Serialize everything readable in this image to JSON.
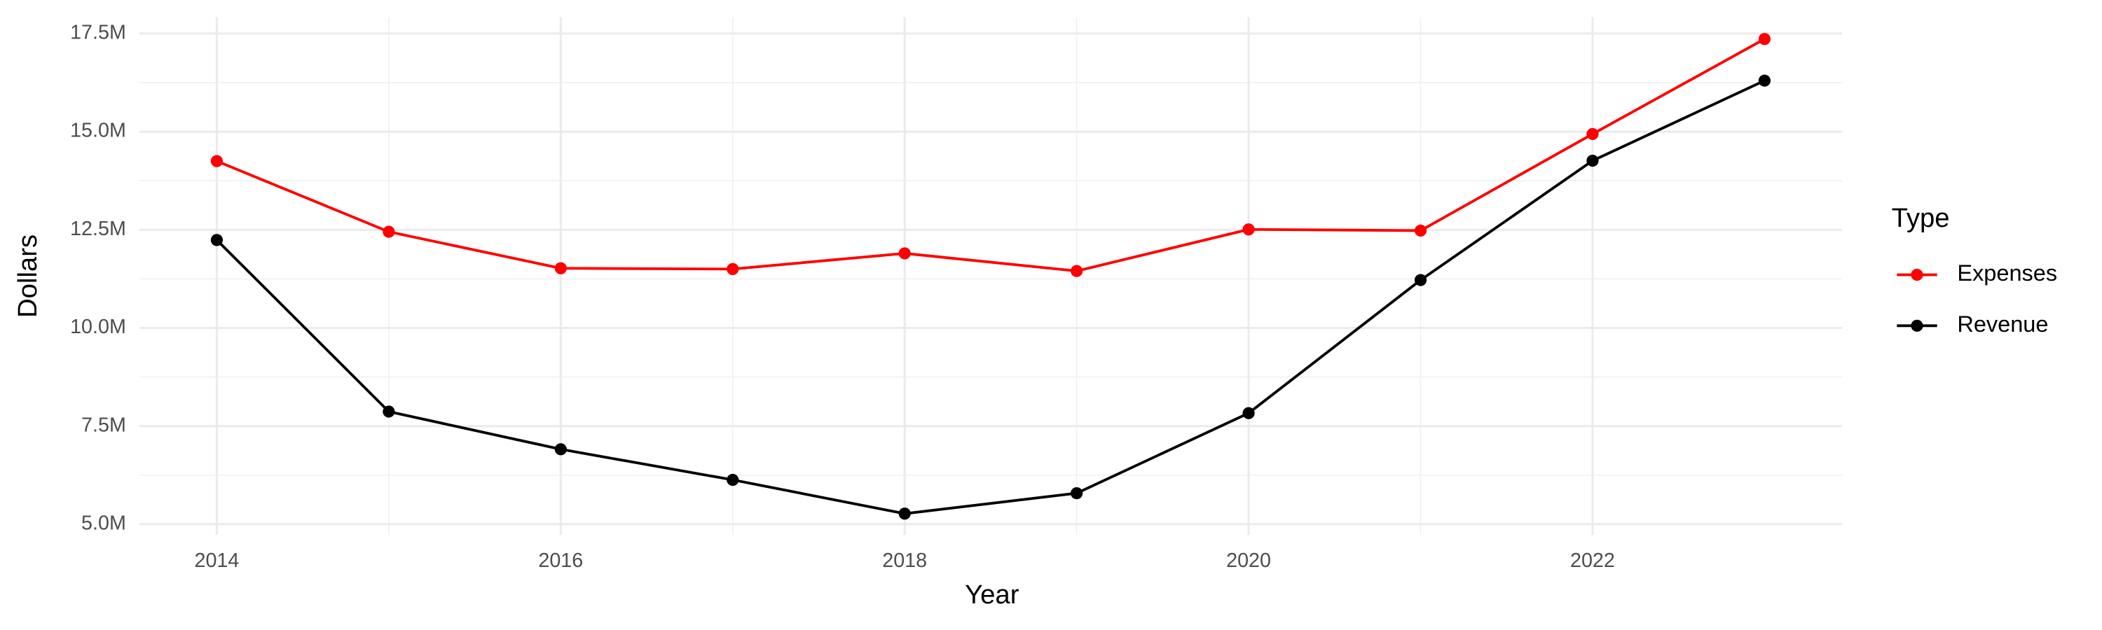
{
  "chart_data": {
    "type": "line",
    "x_label": "Year",
    "y_label": "Dollars",
    "x": [
      2014,
      2015,
      2016,
      2017,
      2018,
      2019,
      2020,
      2021,
      2022,
      2023
    ],
    "series": [
      {
        "name": "Expenses",
        "color": "#ff0000",
        "values": [
          14250000,
          12450000,
          11520000,
          11500000,
          11900000,
          11450000,
          12510000,
          12480000,
          14940000,
          17360000
        ]
      },
      {
        "name": "Revenue",
        "color": "#000000",
        "values": [
          12240000,
          7870000,
          6910000,
          6130000,
          5270000,
          5790000,
          7830000,
          11220000,
          14260000,
          16300000
        ]
      }
    ],
    "xlim": [
      2013.55,
      2023.45
    ],
    "xticks": [
      2014,
      2016,
      2018,
      2020,
      2022
    ],
    "ylim": [
      4730000,
      17910000
    ],
    "yticks": [
      {
        "value": 5000000,
        "label": "5.0M"
      },
      {
        "value": 7500000,
        "label": "7.5M"
      },
      {
        "value": 10000000,
        "label": "10.0M"
      },
      {
        "value": 12500000,
        "label": "12.5M"
      },
      {
        "value": 15000000,
        "label": "15.0M"
      },
      {
        "value": 17500000,
        "label": "17.5M"
      }
    ],
    "grid": true,
    "legend_title": "Type",
    "legend_position": "right"
  }
}
